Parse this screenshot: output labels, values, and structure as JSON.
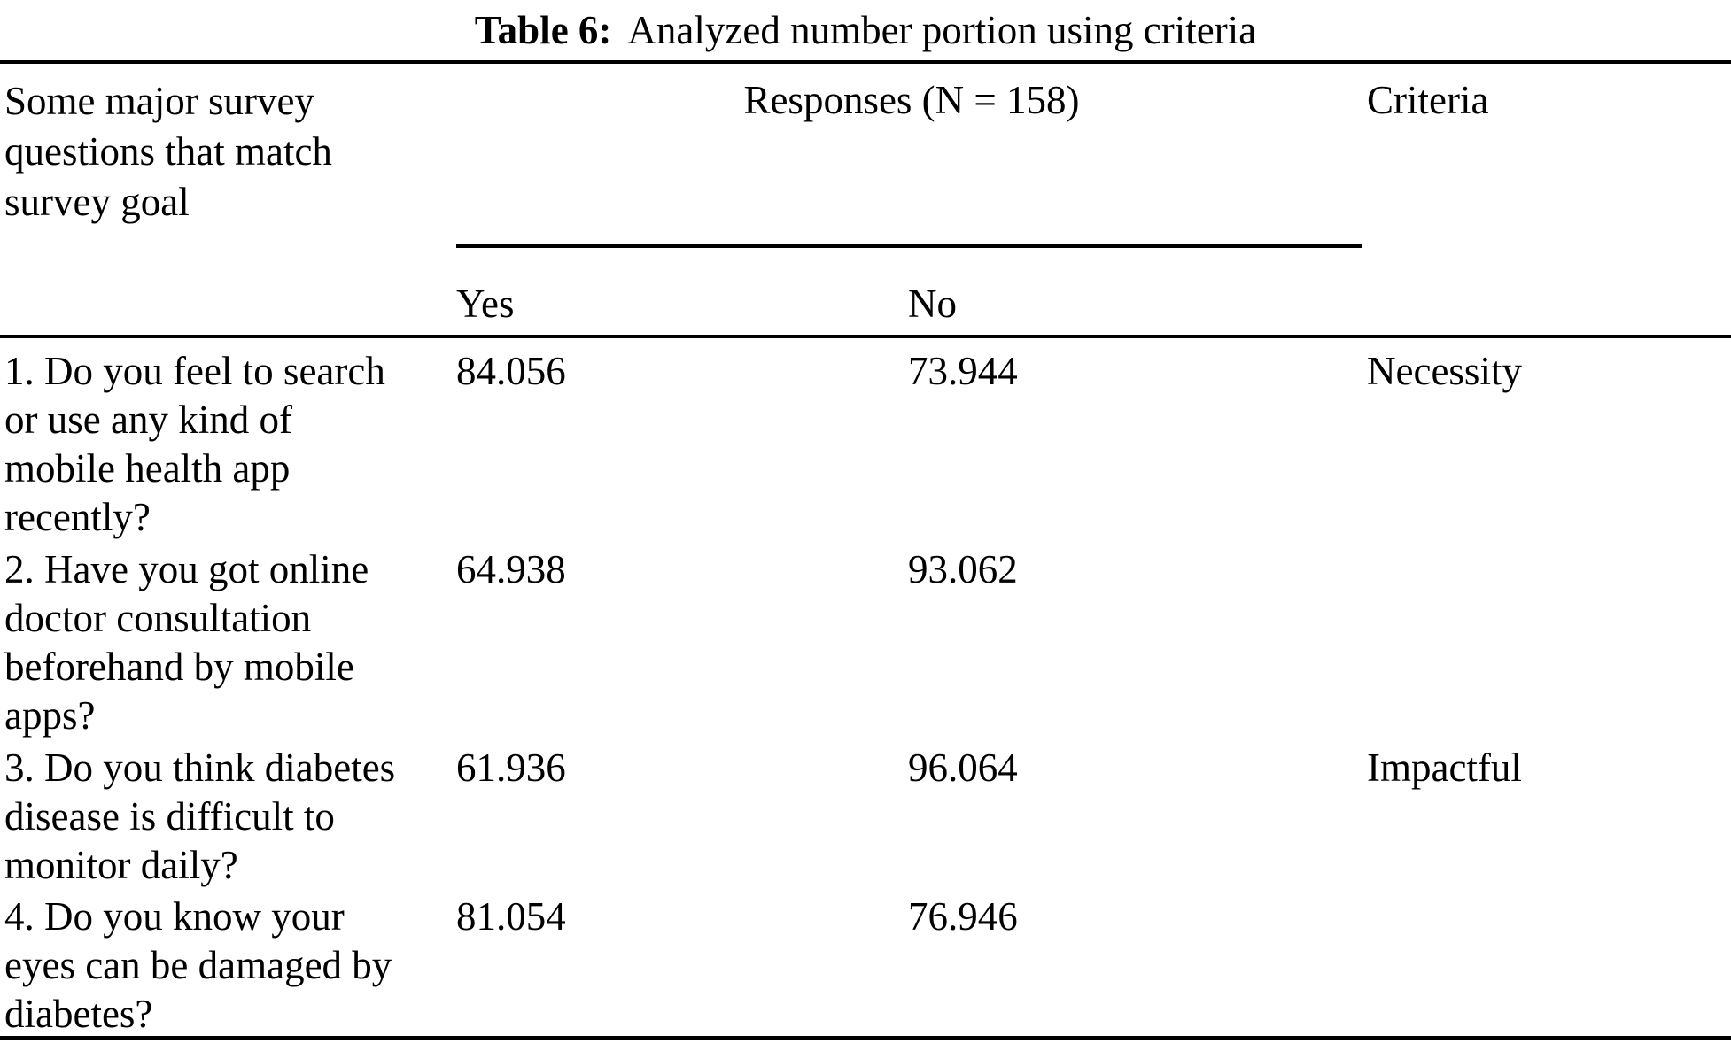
{
  "caption": {
    "prefix": "Table 6:",
    "text": "Analyzed number portion using criteria"
  },
  "header": {
    "question_column": "Some major survey\nquestions that match\nsurvey goal",
    "responses_group": "Responses (N = 158)",
    "yes": "Yes",
    "no": "No",
    "criteria": "Criteria"
  },
  "rows": [
    {
      "question": "1. Do you feel to search\nor use any kind of\nmobile health app\nrecently?",
      "yes": "84.056",
      "no": "73.944",
      "criteria": "Necessity"
    },
    {
      "question": "2. Have you got online\ndoctor consultation\nbeforehand by mobile\napps?",
      "yes": "64.938",
      "no": "93.062",
      "criteria": ""
    },
    {
      "question": "3. Do you think diabetes\ndisease is difficult to\nmonitor daily?",
      "yes": "61.936",
      "no": "96.064",
      "criteria": "Impactful"
    },
    {
      "question": "4. Do you know your\neyes can be damaged by\ndiabetes?",
      "yes": "81.054",
      "no": "76.946",
      "criteria": ""
    }
  ],
  "colors": {
    "background": "#ffffff",
    "text": "#000000",
    "rule": "#000000"
  }
}
